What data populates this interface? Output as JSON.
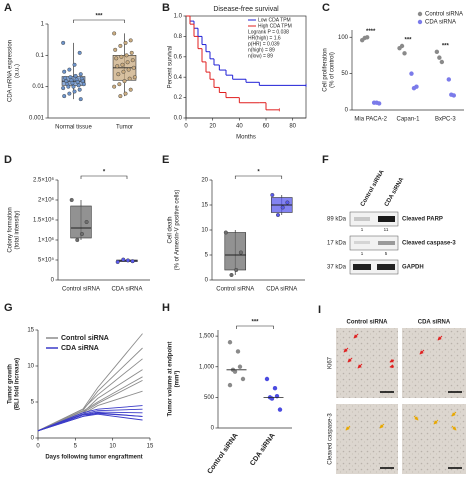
{
  "chart_data": [
    {
      "panel": "A",
      "type": "box",
      "ylabel": [
        "CDA mRNA expression",
        "(a.u.)"
      ],
      "log_scale": true,
      "ylim": [
        0.001,
        1
      ],
      "yticks": [
        0.001,
        0.01,
        0.1,
        1
      ],
      "categories": [
        "Normal tissue",
        "Tumor"
      ],
      "colors": [
        "#6d93c9",
        "#c9ab80"
      ],
      "boxes": [
        {
          "min": 0.004,
          "q1": 0.011,
          "median": 0.015,
          "q3": 0.021,
          "max": 0.25
        },
        {
          "min": 0.005,
          "q1": 0.016,
          "median": 0.04,
          "q3": 0.1,
          "max": 0.5
        }
      ],
      "points": [
        [
          0.25,
          0.12,
          0.05,
          0.035,
          0.03,
          0.025,
          0.022,
          0.02,
          0.019,
          0.018,
          0.017,
          0.016,
          0.015,
          0.015,
          0.014,
          0.013,
          0.012,
          0.012,
          0.011,
          0.01,
          0.01,
          0.009,
          0.008,
          0.007,
          0.006,
          0.005,
          0.004
        ],
        [
          0.5,
          0.3,
          0.25,
          0.2,
          0.15,
          0.12,
          0.1,
          0.09,
          0.08,
          0.07,
          0.06,
          0.05,
          0.045,
          0.04,
          0.035,
          0.03,
          0.025,
          0.02,
          0.018,
          0.015,
          0.012,
          0.01,
          0.008,
          0.006,
          0.005
        ]
      ],
      "significance": "***"
    },
    {
      "panel": "B",
      "type": "survival",
      "title": "Disease-free survival",
      "xlabel": "Months",
      "ylabel": "Percent survival",
      "xlim": [
        0,
        90
      ],
      "xticks": [
        0,
        20,
        40,
        60,
        80
      ],
      "ylim": [
        0,
        1
      ],
      "yticks": [
        {
          "value": 0,
          "label": "0.0"
        },
        0.2,
        0.4,
        0.6,
        0.8,
        {
          "value": 1,
          "label": "1.0"
        }
      ],
      "series": [
        {
          "name": "Low CDA TPM",
          "color": "#1f1fd6",
          "x": [
            0,
            3,
            6,
            9,
            12,
            15,
            18,
            21,
            25,
            30,
            35,
            45,
            55,
            90
          ],
          "values": [
            1,
            0.95,
            0.88,
            0.8,
            0.72,
            0.65,
            0.58,
            0.52,
            0.47,
            0.42,
            0.38,
            0.35,
            0.32,
            0.32
          ]
        },
        {
          "name": "High CDA TPM",
          "color": "#e01f1f",
          "x": [
            0,
            3,
            6,
            9,
            12,
            15,
            18,
            21,
            25,
            30,
            40,
            55,
            60,
            70
          ],
          "values": [
            1,
            0.92,
            0.8,
            0.68,
            0.55,
            0.45,
            0.38,
            0.3,
            0.25,
            0.2,
            0.15,
            0.15,
            0.08,
            0.08
          ]
        }
      ],
      "stats": [
        "Logrank P = 0.038",
        "HR(high) = 1.6",
        "p(HR) = 0.039",
        "n(high) = 89",
        "n(low) = 89"
      ]
    },
    {
      "panel": "C",
      "type": "dot",
      "ylabel": [
        "Cell proliferation",
        "(% of control)"
      ],
      "ylim": [
        0,
        110
      ],
      "yticks": [
        0,
        50,
        100
      ],
      "categories": [
        "Mia PACA-2",
        "Capan-1",
        "BxPC-3"
      ],
      "series": [
        {
          "name": "Control siRNA",
          "color": "#8a8a8a",
          "values": [
            [
              96,
              99,
              100
            ],
            [
              85,
              88,
              78
            ],
            [
              80,
              72,
              66
            ]
          ]
        },
        {
          "name": "CDA siRNA",
          "color": "#7b7bea",
          "values": [
            [
              10,
              10,
              9
            ],
            [
              50,
              30,
              32
            ],
            [
              42,
              21,
              20
            ]
          ]
        }
      ],
      "significance": [
        "****",
        "***",
        "***"
      ]
    },
    {
      "panel": "D",
      "type": "box",
      "ylabel": [
        "Colony formation",
        "(total intensity)"
      ],
      "ylim": [
        0,
        2500000
      ],
      "yticks": [
        0,
        {
          "value": 500000,
          "label": "5×10⁵"
        },
        {
          "value": 1000000,
          "label": "1×10⁶"
        },
        {
          "value": 1500000,
          "label": "1.5×10⁶"
        },
        {
          "value": 2000000,
          "label": "2×10⁶"
        },
        {
          "value": 2500000,
          "label": "2.5×10⁶"
        }
      ],
      "categories": [
        "Control siRNA",
        "CDA siRNA"
      ],
      "colors": [
        "#6e6e6e",
        "#5a5aee"
      ],
      "boxes": [
        {
          "min": 1000000,
          "q1": 1050000,
          "median": 1300000,
          "q3": 1850000,
          "max": 2000000
        },
        {
          "min": 450000,
          "q1": 460000,
          "median": 480000,
          "q3": 500000,
          "max": 510000
        }
      ],
      "points": [
        [
          2000000,
          1450000,
          1150000,
          1000000
        ],
        [
          450000,
          470000,
          490000,
          510000
        ]
      ],
      "significance": "*"
    },
    {
      "panel": "E",
      "type": "box",
      "ylabel": [
        "Cell death",
        "(% of Annexin-V positive cells)"
      ],
      "ylim": [
        0,
        20
      ],
      "yticks": [
        0,
        5,
        10,
        15,
        20
      ],
      "categories": [
        "Control siRNA",
        "CDA siRNA"
      ],
      "colors": [
        "#6e6e6e",
        "#5a5aee"
      ],
      "boxes": [
        {
          "min": 1,
          "q1": 2,
          "median": 5,
          "q3": 9.5,
          "max": 10
        },
        {
          "min": 13,
          "q1": 13.5,
          "median": 15,
          "q3": 16.5,
          "max": 17
        }
      ],
      "points": [
        [
          9.5,
          5.5,
          2,
          1
        ],
        [
          17,
          15.5,
          14.5,
          13
        ]
      ],
      "significance": "*"
    },
    {
      "panel": "G",
      "type": "lines",
      "xlabel": "Days following tumor engraftment",
      "ylabel": [
        "Tumor growth",
        "(BLI fold increase)"
      ],
      "xlim": [
        0,
        15
      ],
      "xticks": [
        0,
        5,
        10,
        15
      ],
      "ylim": [
        0,
        15
      ],
      "yticks": [
        0,
        5,
        10,
        15
      ],
      "x": [
        0,
        6,
        8,
        14
      ],
      "series": [
        {
          "name": "Control siRNA",
          "color": "#8c8c8c",
          "values": [
            [
              1,
              4,
              7,
              14.5
            ],
            [
              1,
              3.8,
              6.5,
              12.5
            ],
            [
              1,
              4,
              6,
              11
            ],
            [
              1,
              3.5,
              5.5,
              9.5
            ],
            [
              1,
              3.7,
              5,
              8.5
            ],
            [
              1,
              3.5,
              4.8,
              8
            ],
            [
              1,
              3.3,
              4.5,
              6.5
            ]
          ]
        },
        {
          "name": "CDA siRNA",
          "color": "#3b3bc8",
          "values": [
            [
              1,
              3.5,
              4,
              4.5
            ],
            [
              1,
              3.3,
              3.8,
              4
            ],
            [
              1,
              3.2,
              3.6,
              3.5
            ],
            [
              1,
              3,
              3.5,
              3
            ],
            [
              1,
              3.2,
              3.4,
              3
            ],
            [
              1,
              3,
              3.3,
              2.5
            ]
          ]
        }
      ]
    },
    {
      "panel": "H",
      "type": "dot",
      "ylabel": [
        "Tumor volume at endpoint",
        "(mm³)"
      ],
      "ylim": [
        0,
        1600
      ],
      "yticks": [
        0,
        500,
        {
          "value": 1000,
          "label": "1,000"
        },
        {
          "value": 1500,
          "label": "1,500"
        }
      ],
      "categories": [
        "Control siRNA",
        "CDA siRNA"
      ],
      "colors": [
        "#8a8a8a",
        "#4b4be0"
      ],
      "values": [
        [
          1400,
          1250,
          1000,
          950,
          920,
          800,
          700
        ],
        [
          800,
          650,
          520,
          500,
          480,
          300
        ]
      ],
      "medians": [
        950,
        500
      ],
      "significance": "***"
    }
  ],
  "blot": {
    "panel": "F",
    "lanes": [
      "Control siRNA",
      "CDA siRNA"
    ],
    "bands": [
      {
        "size": "89 kDa",
        "name": "Cleaved PARP",
        "quant": [
          1,
          11
        ]
      },
      {
        "size": "17 kDa",
        "name": "Cleaved caspase-3",
        "quant": [
          1,
          5
        ]
      },
      {
        "size": "37 kDa",
        "name": "GAPDH"
      }
    ]
  },
  "ihc": {
    "panel": "I",
    "columns": [
      "Control siRNA",
      "CDA siRNA"
    ],
    "rows": [
      "Ki67",
      "Cleaved caspase-3"
    ]
  }
}
